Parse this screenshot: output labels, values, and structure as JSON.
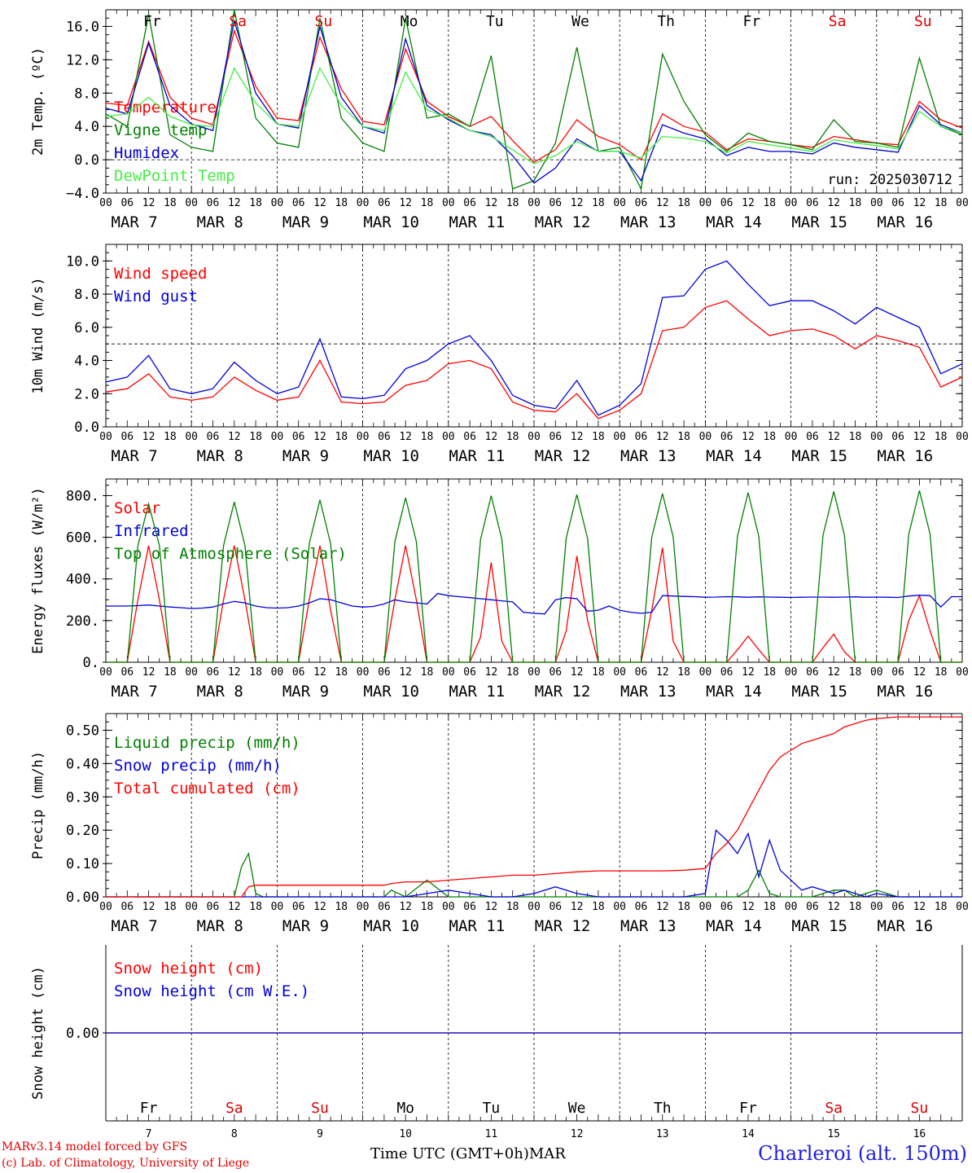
{
  "footer": {
    "model": "MARv3.14 model forced by GFS",
    "lab": "(c) Lab. of Climatology, University of Liege",
    "time_label": "Time UTC (GMT+0h)",
    "month": "MAR",
    "station": "Charleroi (alt. 150m)"
  },
  "axis_days": {
    "day_names": [
      "Fr",
      "Sa",
      "Su",
      "Mo",
      "Tu",
      "We",
      "Th",
      "Fr",
      "Sa",
      "Su"
    ],
    "day_colors": [
      "#000000",
      "#e00000",
      "#e00000",
      "#000000",
      "#000000",
      "#000000",
      "#000000",
      "#000000",
      "#e00000",
      "#e00000"
    ],
    "dates": [
      "MAR  7",
      "MAR  8",
      "MAR  9",
      "MAR 10",
      "MAR 11",
      "MAR 12",
      "MAR 13",
      "MAR 14",
      "MAR 15",
      "MAR 16"
    ],
    "day_numbers": [
      "7",
      "8",
      "9",
      "10",
      "11",
      "12",
      "13",
      "14",
      "15",
      "16"
    ],
    "hour_ticks": [
      "00",
      "06",
      "12",
      "18"
    ],
    "final_tick": "00"
  },
  "chart_data": [
    {
      "type": "line",
      "ylabel": "2m Temp. (ºC)",
      "ylim": [
        -4,
        18
      ],
      "yticks": [
        "16.0",
        "12.0",
        "8.0",
        "4.0",
        "0.0",
        "−4.0"
      ],
      "ytick_values": [
        16,
        12,
        8,
        4,
        0,
        -4
      ],
      "ref_line": 0,
      "x_hours": [
        0,
        6,
        12,
        18,
        24,
        30,
        36,
        42,
        48,
        54,
        60,
        66,
        72,
        78,
        84,
        90,
        96,
        102,
        108,
        114,
        120,
        126,
        132,
        138,
        144,
        150,
        156,
        162,
        168,
        174,
        180,
        186,
        192,
        198,
        204,
        210,
        216,
        222,
        228,
        234,
        240
      ],
      "annotation": "run: 2025030712",
      "series": [
        {
          "name": "Temperature",
          "color": "#ff0000",
          "values": [
            6.8,
            6.5,
            14.2,
            7.5,
            5.0,
            4.2,
            15.5,
            8.8,
            5.0,
            4.7,
            14.7,
            8.5,
            4.6,
            4.2,
            13.3,
            7.0,
            5.2,
            4.0,
            5.2,
            2.3,
            -0.3,
            1.2,
            4.8,
            2.8,
            1.8,
            0.0,
            5.5,
            4.0,
            3.3,
            1.2,
            2.5,
            2.2,
            1.8,
            1.5,
            2.8,
            2.4,
            2.0,
            1.8,
            7.0,
            4.8,
            3.8
          ]
        },
        {
          "name": "Vigne temp",
          "color": "#008000",
          "values": [
            5.5,
            4.0,
            17.5,
            3.0,
            1.5,
            1.0,
            18.0,
            5.0,
            2.0,
            1.5,
            17.0,
            5.0,
            2.0,
            1.0,
            17.0,
            5.0,
            5.5,
            4.0,
            12.5,
            -3.5,
            -2.5,
            2.0,
            13.5,
            1.0,
            1.5,
            -3.5,
            12.7,
            7.0,
            3.0,
            1.0,
            3.2,
            2.2,
            1.8,
            1.2,
            4.8,
            2.2,
            2.0,
            1.5,
            12.2,
            4.0,
            3.0
          ]
        },
        {
          "name": "Humidex",
          "color": "#0000cc",
          "values": [
            6.2,
            5.5,
            14.0,
            6.5,
            4.3,
            3.5,
            16.7,
            8.0,
            4.3,
            3.8,
            16.0,
            7.5,
            4.0,
            3.2,
            14.5,
            6.5,
            4.8,
            3.5,
            3.0,
            0.5,
            -2.8,
            -1.0,
            2.5,
            1.0,
            1.0,
            -2.5,
            4.2,
            3.2,
            2.5,
            0.5,
            1.5,
            1.0,
            1.0,
            0.7,
            2.0,
            1.5,
            1.2,
            0.9,
            6.5,
            4.2,
            3.2
          ]
        },
        {
          "name": "DewPoint Temp",
          "color": "#44ee44",
          "values": [
            5.2,
            5.5,
            7.5,
            5.2,
            4.2,
            4.0,
            11.0,
            6.8,
            4.3,
            4.0,
            11.0,
            6.5,
            4.0,
            3.5,
            10.5,
            6.0,
            5.0,
            3.5,
            2.8,
            1.2,
            -0.5,
            0.5,
            2.2,
            1.0,
            1.0,
            0.2,
            2.8,
            2.6,
            2.2,
            0.8,
            2.2,
            1.8,
            1.4,
            1.0,
            2.4,
            2.0,
            1.7,
            1.3,
            5.8,
            4.0,
            3.2
          ]
        }
      ]
    },
    {
      "type": "line",
      "ylabel": "10m Wind (m/s)",
      "ylim": [
        0,
        11
      ],
      "yticks": [
        "10.0",
        "8.0",
        "6.0",
        "4.0",
        "2.0",
        "0.0"
      ],
      "ytick_values": [
        10,
        8,
        6,
        4,
        2,
        0
      ],
      "ref_line": 5,
      "x_hours": [
        0,
        6,
        12,
        18,
        24,
        30,
        36,
        42,
        48,
        54,
        60,
        66,
        72,
        78,
        84,
        90,
        96,
        102,
        108,
        114,
        120,
        126,
        132,
        138,
        144,
        150,
        156,
        162,
        168,
        174,
        180,
        186,
        192,
        198,
        204,
        210,
        216,
        222,
        228,
        234,
        240
      ],
      "series": [
        {
          "name": "Wind speed",
          "color": "#ff0000",
          "values": [
            2.1,
            2.3,
            3.2,
            1.8,
            1.6,
            1.8,
            3.0,
            2.2,
            1.6,
            1.8,
            4.0,
            1.5,
            1.4,
            1.5,
            2.5,
            2.8,
            3.8,
            4.0,
            3.5,
            1.5,
            1.0,
            0.9,
            2.0,
            0.5,
            1.0,
            2.0,
            5.8,
            6.0,
            7.2,
            7.6,
            6.5,
            5.5,
            5.8,
            5.9,
            5.5,
            4.7,
            5.5,
            5.2,
            4.8,
            2.4,
            3.0
          ]
        },
        {
          "name": "Wind gust",
          "color": "#0000dd",
          "values": [
            2.7,
            3.0,
            4.3,
            2.3,
            2.0,
            2.3,
            3.9,
            2.8,
            2.0,
            2.4,
            5.3,
            1.8,
            1.7,
            1.9,
            3.5,
            4.0,
            5.0,
            5.5,
            4.0,
            1.9,
            1.3,
            1.1,
            2.8,
            0.7,
            1.3,
            2.6,
            7.8,
            7.9,
            9.5,
            10.0,
            8.6,
            7.3,
            7.6,
            7.6,
            7.0,
            6.2,
            7.2,
            6.6,
            6.0,
            3.2,
            3.8
          ]
        }
      ]
    },
    {
      "type": "line",
      "ylabel": "Energy fluxes (W/m²)",
      "ylim": [
        0,
        880
      ],
      "yticks": [
        "800.",
        "600.",
        "400.",
        "200.",
        "0."
      ],
      "ytick_values": [
        800,
        600,
        400,
        200,
        0
      ],
      "x_hours": [
        0,
        3,
        6,
        9,
        12,
        15,
        18,
        21,
        24,
        27,
        30,
        33,
        36,
        39,
        42,
        45,
        48,
        51,
        54,
        57,
        60,
        63,
        66,
        69,
        72,
        75,
        78,
        81,
        84,
        87,
        90,
        93,
        96,
        99,
        102,
        105,
        108,
        111,
        114,
        117,
        120,
        123,
        126,
        129,
        132,
        135,
        138,
        141,
        144,
        147,
        150,
        153,
        156,
        159,
        162,
        165,
        168,
        171,
        174,
        177,
        180,
        183,
        186,
        189,
        192,
        195,
        198,
        201,
        204,
        207,
        210,
        213,
        216,
        219,
        222,
        225,
        228,
        231,
        234,
        237,
        240
      ],
      "series": [
        {
          "name": "Solar",
          "color": "#ff0000",
          "values": [
            0,
            0,
            0,
            300,
            560,
            300,
            0,
            0,
            0,
            0,
            0,
            300,
            560,
            300,
            0,
            0,
            0,
            0,
            0,
            300,
            560,
            250,
            0,
            0,
            0,
            0,
            0,
            300,
            560,
            300,
            0,
            0,
            0,
            0,
            0,
            120,
            480,
            100,
            0,
            0,
            0,
            0,
            0,
            150,
            510,
            200,
            0,
            0,
            0,
            0,
            0,
            250,
            550,
            100,
            0,
            0,
            0,
            0,
            0,
            60,
            125,
            60,
            0,
            0,
            0,
            0,
            0,
            70,
            135,
            50,
            0,
            0,
            0,
            0,
            0,
            200,
            320,
            150,
            0,
            0,
            0
          ]
        },
        {
          "name": "Infrared",
          "color": "#0000dd",
          "values": [
            270,
            270,
            270,
            272,
            275,
            270,
            265,
            262,
            258,
            260,
            265,
            280,
            292,
            285,
            270,
            262,
            260,
            262,
            270,
            285,
            305,
            300,
            285,
            270,
            265,
            268,
            280,
            300,
            290,
            285,
            280,
            330,
            320,
            315,
            310,
            305,
            300,
            295,
            290,
            240,
            235,
            232,
            300,
            310,
            305,
            245,
            250,
            270,
            250,
            240,
            235,
            240,
            320,
            318,
            316,
            315,
            312,
            313,
            315,
            314,
            312,
            314,
            313,
            312,
            311,
            312,
            313,
            313,
            312,
            313,
            314,
            312,
            313,
            312,
            311,
            318,
            322,
            320,
            265,
            315,
            315
          ]
        },
        {
          "name": "Top of Atmosphere (Solar)",
          "color": "#008000",
          "values": [
            0,
            0,
            0,
            560,
            760,
            560,
            0,
            0,
            0,
            0,
            0,
            560,
            770,
            560,
            0,
            0,
            0,
            0,
            0,
            570,
            780,
            570,
            0,
            0,
            0,
            0,
            0,
            580,
            790,
            580,
            0,
            0,
            0,
            0,
            0,
            590,
            800,
            590,
            0,
            0,
            0,
            0,
            0,
            595,
            805,
            595,
            0,
            0,
            0,
            0,
            0,
            600,
            810,
            600,
            0,
            0,
            0,
            0,
            0,
            605,
            815,
            605,
            0,
            0,
            0,
            0,
            0,
            610,
            820,
            610,
            0,
            0,
            0,
            0,
            0,
            615,
            825,
            615,
            0,
            0,
            0
          ]
        }
      ]
    },
    {
      "type": "line",
      "ylabel": "Precip (mm/h)",
      "ylim": [
        0,
        0.55
      ],
      "yticks": [
        "0.50",
        "0.40",
        "0.30",
        "0.20",
        "0.10",
        "0.00"
      ],
      "ytick_values": [
        0.5,
        0.4,
        0.3,
        0.2,
        0.1,
        0
      ],
      "x_hours": [
        0,
        6,
        12,
        18,
        24,
        30,
        36,
        38,
        40,
        42,
        44,
        48,
        54,
        60,
        66,
        72,
        78,
        80,
        84,
        90,
        96,
        102,
        108,
        114,
        120,
        126,
        132,
        138,
        144,
        150,
        156,
        162,
        168,
        171,
        174,
        177,
        180,
        183,
        186,
        189,
        192,
        195,
        198,
        201,
        204,
        207,
        210,
        213,
        216,
        222,
        228,
        234,
        240
      ],
      "series": [
        {
          "name": "Liquid precip (mm/h)",
          "color": "#008000",
          "values": [
            0,
            0,
            0,
            0,
            0,
            0,
            0,
            0.09,
            0.13,
            0.01,
            0,
            0,
            0,
            0,
            0,
            0,
            0,
            0.02,
            0,
            0.05,
            0,
            0,
            0,
            0,
            0,
            0,
            0,
            0,
            0,
            0,
            0,
            0,
            0,
            0,
            0,
            0,
            0.02,
            0.08,
            0.01,
            0,
            0,
            0,
            0,
            0.01,
            0.02,
            0.02,
            0,
            0.01,
            0.02,
            0,
            0,
            0,
            0
          ]
        },
        {
          "name": "Snow precip (mm/h)",
          "color": "#0000dd",
          "values": [
            0,
            0,
            0,
            0,
            0,
            0,
            0,
            0,
            0,
            0,
            0,
            0,
            0,
            0,
            0,
            0,
            0,
            0,
            0,
            0.01,
            0.02,
            0.01,
            0,
            0,
            0.01,
            0.03,
            0.01,
            0,
            0,
            0,
            0,
            0,
            0.01,
            0.2,
            0.17,
            0.13,
            0.19,
            0.06,
            0.17,
            0.08,
            0.05,
            0.02,
            0.03,
            0.02,
            0.01,
            0.02,
            0.01,
            0,
            0.01,
            0,
            0,
            0,
            0
          ]
        },
        {
          "name": "Total cumulated (cm)",
          "color": "#ff0000",
          "values": [
            0,
            0,
            0,
            0,
            0,
            0,
            0,
            0.0,
            0.03,
            0.035,
            0.035,
            0.035,
            0.035,
            0.035,
            0.035,
            0.035,
            0.035,
            0.04,
            0.045,
            0.045,
            0.05,
            0.055,
            0.06,
            0.065,
            0.065,
            0.07,
            0.075,
            0.078,
            0.078,
            0.078,
            0.078,
            0.08,
            0.085,
            0.13,
            0.16,
            0.2,
            0.26,
            0.32,
            0.38,
            0.42,
            0.44,
            0.46,
            0.47,
            0.48,
            0.49,
            0.51,
            0.52,
            0.53,
            0.535,
            0.54,
            0.54,
            0.54,
            0.54
          ]
        }
      ]
    },
    {
      "type": "line",
      "ylabel": "Snow height (cm)",
      "ylim": [
        -1,
        1
      ],
      "yticks": [
        "0.00"
      ],
      "ytick_values": [
        0
      ],
      "x_hours": [
        0,
        240
      ],
      "series": [
        {
          "name": "Snow height (cm)",
          "color": "#ff0000",
          "values": [
            0,
            0
          ]
        },
        {
          "name": "Snow height (cm W.E.)",
          "color": "#0000dd",
          "values": [
            0,
            0
          ]
        }
      ]
    }
  ]
}
